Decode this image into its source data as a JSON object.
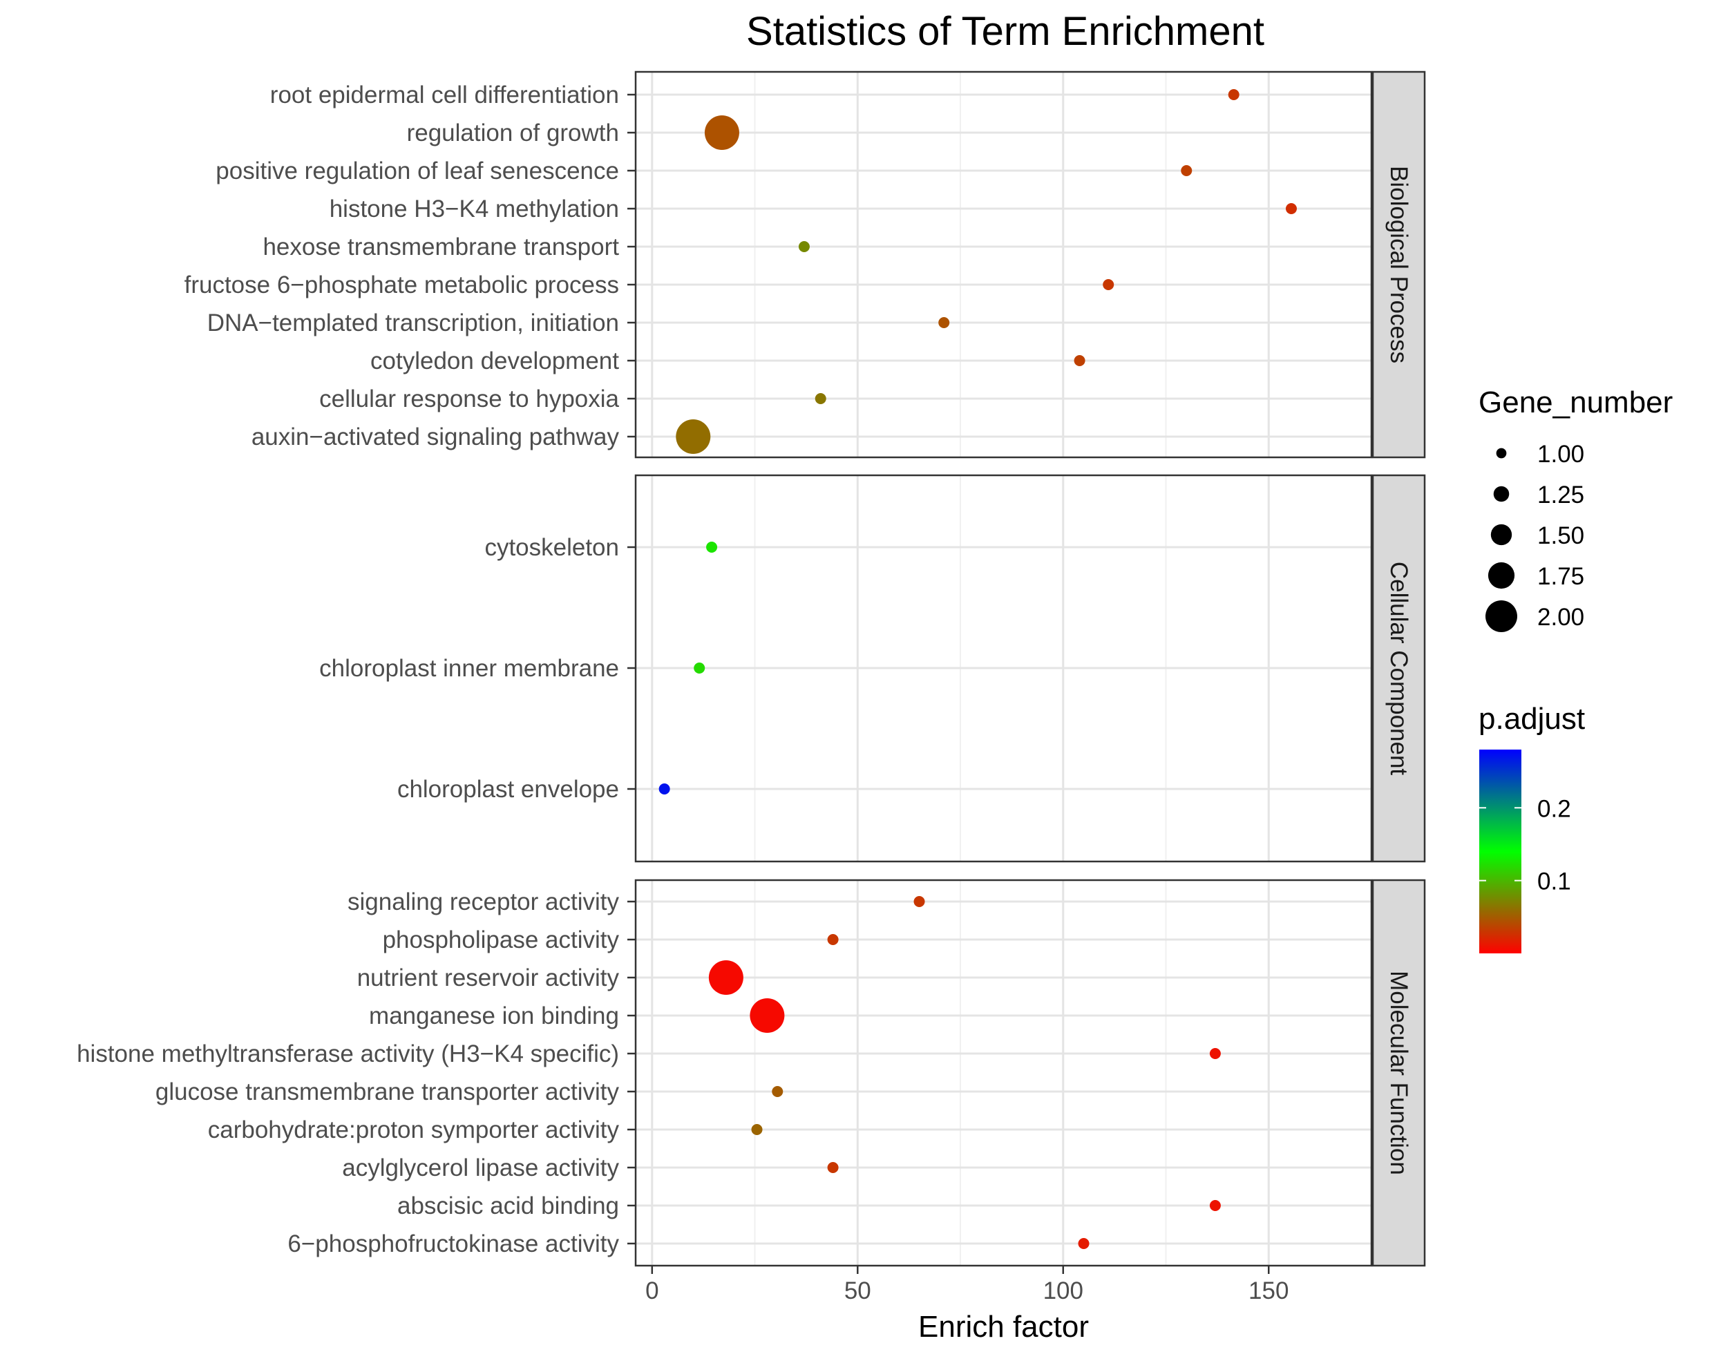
{
  "chart_data": {
    "type": "scatter",
    "title": "Statistics of Term Enrichment",
    "xlabel": "Enrich factor",
    "ylabel": "",
    "xlim": [
      -4,
      175
    ],
    "x_ticks": [
      0,
      50,
      100,
      150
    ],
    "x_tick_labels": [
      "0",
      "50",
      "100",
      "150"
    ],
    "facets": [
      {
        "name": "Biological Process",
        "terms": [
          {
            "term": "root epidermal cell differentiation",
            "enrich": 141.5,
            "gene_number": 1,
            "p_adjust": 0.03
          },
          {
            "term": "regulation of growth",
            "enrich": 17,
            "gene_number": 2,
            "p_adjust": 0.045
          },
          {
            "term": "positive regulation of leaf senescence",
            "enrich": 130,
            "gene_number": 1,
            "p_adjust": 0.035
          },
          {
            "term": "histone H3−K4 methylation",
            "enrich": 155.5,
            "gene_number": 1,
            "p_adjust": 0.025
          },
          {
            "term": "hexose transmembrane transport",
            "enrich": 37,
            "gene_number": 1,
            "p_adjust": 0.075
          },
          {
            "term": "fructose 6−phosphate metabolic process",
            "enrich": 111,
            "gene_number": 1,
            "p_adjust": 0.03
          },
          {
            "term": "DNA−templated transcription, initiation",
            "enrich": 71,
            "gene_number": 1,
            "p_adjust": 0.045
          },
          {
            "term": "cotyledon development",
            "enrich": 104,
            "gene_number": 1,
            "p_adjust": 0.035
          },
          {
            "term": "cellular response to hypoxia",
            "enrich": 41,
            "gene_number": 1,
            "p_adjust": 0.065
          },
          {
            "term": "auxin−activated signaling pathway",
            "enrich": 10,
            "gene_number": 2,
            "p_adjust": 0.06
          }
        ]
      },
      {
        "name": "Cellular Component",
        "terms": [
          {
            "term": "cytoskeleton",
            "enrich": 14.5,
            "gene_number": 1,
            "p_adjust": 0.125
          },
          {
            "term": "chloroplast inner membrane",
            "enrich": 11.5,
            "gene_number": 1,
            "p_adjust": 0.12
          },
          {
            "term": "chloroplast envelope",
            "enrich": 3,
            "gene_number": 1,
            "p_adjust": 0.27
          }
        ]
      },
      {
        "name": "Molecular Function",
        "terms": [
          {
            "term": "signaling receptor activity",
            "enrich": 65,
            "gene_number": 1,
            "p_adjust": 0.03
          },
          {
            "term": "phospholipase activity",
            "enrich": 44,
            "gene_number": 1,
            "p_adjust": 0.03
          },
          {
            "term": "nutrient reservoir activity",
            "enrich": 18,
            "gene_number": 2,
            "p_adjust": 0.005
          },
          {
            "term": "manganese ion binding",
            "enrich": 28,
            "gene_number": 2,
            "p_adjust": 0.005
          },
          {
            "term": "histone methyltransferase activity (H3−K4 specific)",
            "enrich": 137,
            "gene_number": 1,
            "p_adjust": 0.01
          },
          {
            "term": "glucose transmembrane transporter activity",
            "enrich": 30.5,
            "gene_number": 1,
            "p_adjust": 0.05
          },
          {
            "term": "carbohydrate:proton symporter activity",
            "enrich": 25.5,
            "gene_number": 1,
            "p_adjust": 0.055
          },
          {
            "term": "acylglycerol lipase activity",
            "enrich": 44,
            "gene_number": 1,
            "p_adjust": 0.03
          },
          {
            "term": "abscisic acid binding",
            "enrich": 137,
            "gene_number": 1,
            "p_adjust": 0.01
          },
          {
            "term": "6−phosphofructokinase activity",
            "enrich": 105,
            "gene_number": 1,
            "p_adjust": 0.015
          }
        ]
      }
    ],
    "size_legend": {
      "title": "Gene_number",
      "values": [
        1.0,
        1.25,
        1.5,
        1.75,
        2.0
      ],
      "labels": [
        "1.00",
        "1.25",
        "1.50",
        "1.75",
        "2.00"
      ]
    },
    "color_legend": {
      "title": "p.adjust",
      "range": [
        0.0,
        0.28
      ],
      "ticks": [
        0.1,
        0.2
      ],
      "tick_labels": [
        "0.1",
        "0.2"
      ],
      "colors": [
        "#ff0000",
        "#00ff00",
        "#0000ff"
      ]
    },
    "legend_position": "right"
  }
}
